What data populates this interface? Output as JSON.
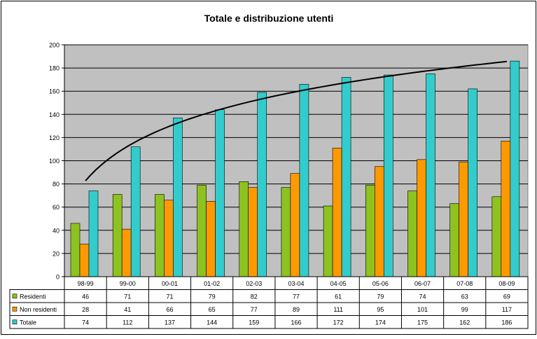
{
  "chart_data": {
    "type": "bar",
    "title": "Totale e distribuzione utenti",
    "categories": [
      "98-99",
      "99-00",
      "00-01",
      "01-02",
      "02-03",
      "03-04",
      "04-05",
      "05-06",
      "06-07",
      "07-08",
      "08-09"
    ],
    "series": [
      {
        "name": "Residenti",
        "color": "#8dc21f",
        "values": [
          46,
          71,
          71,
          79,
          82,
          77,
          61,
          79,
          74,
          63,
          69
        ]
      },
      {
        "name": "Non residenti",
        "color": "#ff9900",
        "values": [
          28,
          41,
          66,
          65,
          77,
          89,
          111,
          95,
          101,
          99,
          117
        ]
      },
      {
        "name": "Totale",
        "color": "#33cccc",
        "values": [
          74,
          112,
          137,
          144,
          159,
          166,
          172,
          174,
          175,
          162,
          186
        ]
      }
    ],
    "trendline": {
      "type": "logarithmic",
      "series": "Totale",
      "color": "#000000"
    },
    "ylim": [
      0,
      200
    ],
    "yticks": [
      0,
      20,
      40,
      60,
      80,
      100,
      120,
      140,
      160,
      180,
      200
    ],
    "grid": true,
    "plot_background": "#c0c0c0",
    "legend": "data-table"
  }
}
